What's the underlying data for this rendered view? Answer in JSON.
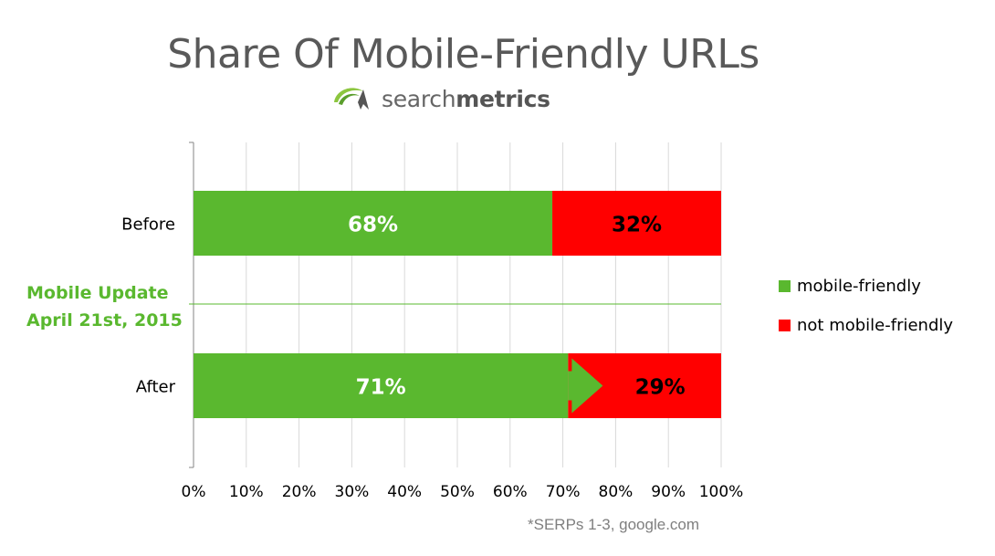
{
  "chart_data": {
    "type": "bar",
    "orientation": "horizontal",
    "stacked": true,
    "title": "Share Of Mobile-Friendly URLs",
    "categories": [
      "Before",
      "After"
    ],
    "series": [
      {
        "name": "mobile-friendly",
        "values": [
          68,
          71
        ],
        "color": "#5ab82f",
        "labels": [
          "68%",
          "71%"
        ],
        "label_color": "#ffffff"
      },
      {
        "name": "not mobile-friendly",
        "values": [
          32,
          29
        ],
        "color": "#ff0000",
        "labels": [
          "32%",
          "29%"
        ],
        "label_color": "#000000"
      }
    ],
    "xlim": [
      0,
      100
    ],
    "x_ticks": [
      "0%",
      "10%",
      "20%",
      "30%",
      "40%",
      "50%",
      "60%",
      "70%",
      "80%",
      "90%",
      "100%"
    ],
    "grid": "vertical",
    "legend_position": "right",
    "divider_color": "#5ab82f",
    "annotation": {
      "line1": "Mobile Update",
      "line2": "April 21st, 2015",
      "color": "#5ab82f"
    },
    "footnote": "*SERPs 1-3, google.com"
  },
  "brand": {
    "logo_text_light": "search",
    "logo_text_bold": "metrics",
    "logo_icon": "searchmetrics-swoosh-icon"
  }
}
